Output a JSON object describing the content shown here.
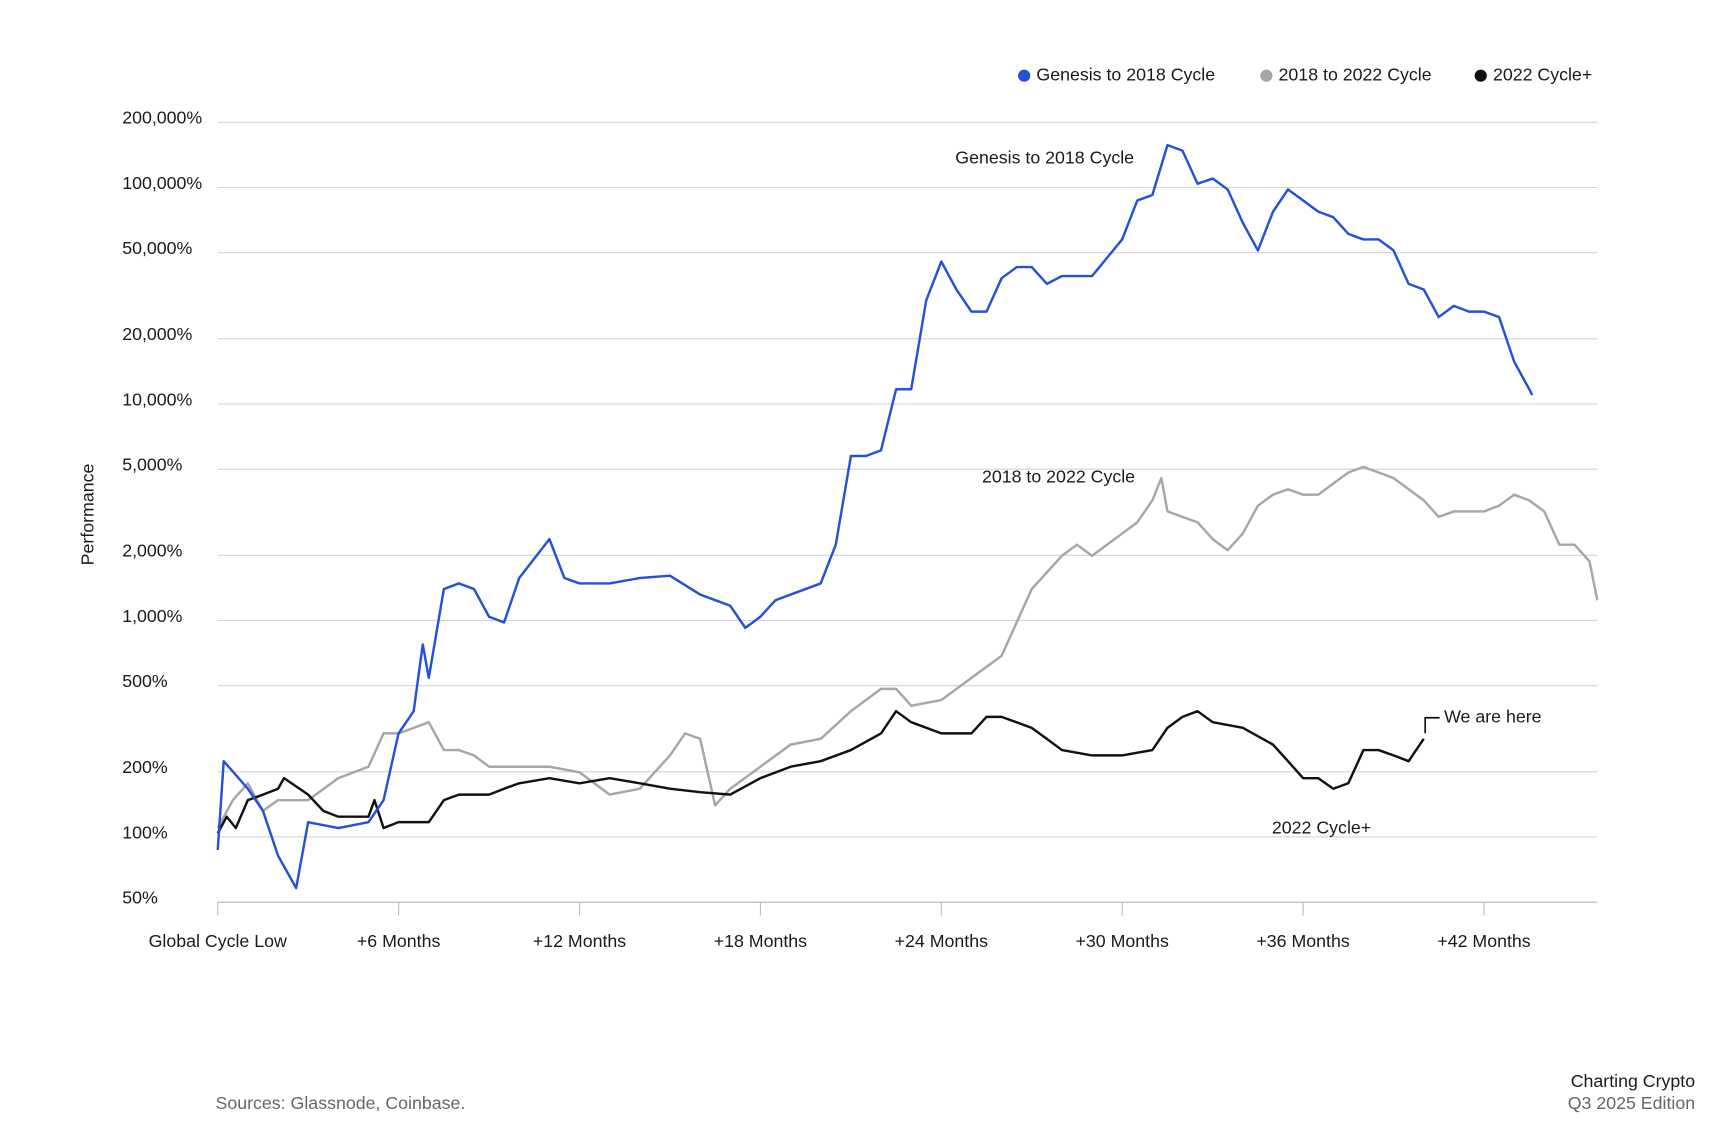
{
  "chart_data": {
    "type": "line",
    "y_label": "Performance",
    "log_y": true,
    "grid": true,
    "legend": "top-right",
    "xlim": [
      0,
      45.76
    ],
    "xticks": [
      {
        "value": 0,
        "label": "Global Cycle Low"
      },
      {
        "value": 6,
        "label": "+6 Months"
      },
      {
        "value": 12,
        "label": "+12 Months"
      },
      {
        "value": 18,
        "label": "+18 Months"
      },
      {
        "value": 24,
        "label": "+24 Months"
      },
      {
        "value": 30,
        "label": "+30 Months"
      },
      {
        "value": 36,
        "label": "+36 Months"
      },
      {
        "value": 42,
        "label": "+42 Months"
      }
    ],
    "ylim": [
      50,
      200000
    ],
    "yticks": [
      {
        "value": 50,
        "label": "50%"
      },
      {
        "value": 100,
        "label": "100%"
      },
      {
        "value": 200,
        "label": "200%"
      },
      {
        "value": 500,
        "label": "500%"
      },
      {
        "value": 1000,
        "label": "1,000%"
      },
      {
        "value": 2000,
        "label": "2,000%"
      },
      {
        "value": 5000,
        "label": "5,000%"
      },
      {
        "value": 10000,
        "label": "10,000%"
      },
      {
        "value": 20000,
        "label": "20,000%"
      },
      {
        "value": 50000,
        "label": "50,000%"
      },
      {
        "value": 100000,
        "label": "100,000%"
      },
      {
        "value": 200000,
        "label": "200,000%"
      }
    ],
    "series": [
      {
        "name": "Genesis to 2018 Cycle",
        "color": "#2451d6",
        "x": [
          0,
          0.2,
          1,
          1.5,
          2,
          2.6,
          3,
          4,
          5,
          5.5,
          6,
          6.5,
          6.8,
          7,
          7.5,
          8,
          8.5,
          9,
          9.5,
          10,
          11,
          11.5,
          12,
          13,
          14,
          15,
          16,
          17,
          17.5,
          18,
          18.5,
          19,
          20,
          20.5,
          21,
          21.5,
          22,
          22.5,
          23,
          23.5,
          24,
          24.5,
          25,
          25.5,
          26,
          26.5,
          27,
          27.5,
          28,
          29,
          30,
          30.5,
          31,
          31.5,
          32,
          32.5,
          33,
          33.5,
          34,
          34.5,
          35,
          35.5,
          36,
          36.5,
          37,
          37.5,
          38,
          38.5,
          39,
          39.5,
          40,
          40.5,
          41,
          41.5,
          42,
          42.5,
          43,
          43.5,
          43.6
        ],
        "values": [
          87,
          224,
          167,
          132,
          82,
          58,
          117,
          110,
          117,
          148,
          301,
          381,
          775,
          543,
          1397,
          1482,
          1397,
          1040,
          980,
          1572,
          2375,
          1572,
          1482,
          1482,
          1572,
          1610,
          1317,
          1169,
          924,
          1040,
          1241,
          1317,
          1482,
          2240,
          5750,
          5750,
          6110,
          11700,
          11700,
          30100,
          45500,
          33800,
          26700,
          26700,
          38100,
          42900,
          42900,
          35900,
          39000,
          39000,
          57600,
          87100,
          92400,
          157000,
          148000,
          104000,
          110000,
          98000,
          68700,
          51200,
          77400,
          98000,
          87100,
          77400,
          72900,
          61100,
          57600,
          57600,
          51200,
          35900,
          33800,
          25200,
          28400,
          26700,
          26700,
          25200,
          15700,
          11700,
          11000
        ]
      },
      {
        "name": "2018 to 2022 Cycle",
        "color": "#a6a6a6",
        "x": [
          0,
          0.5,
          1,
          1.5,
          2,
          3,
          4,
          5,
          5.5,
          6,
          6.5,
          7,
          7.5,
          8,
          8.5,
          9,
          10,
          11,
          12,
          13,
          14,
          15,
          15.5,
          16,
          16.5,
          17,
          18,
          19,
          20,
          21,
          22,
          22.5,
          23,
          24,
          25,
          26,
          27,
          28,
          28.5,
          29,
          30,
          30.5,
          31,
          31.3,
          31.5,
          32,
          32.5,
          33,
          33.5,
          34,
          34.5,
          35,
          35.5,
          36,
          36.5,
          37,
          37.5,
          38,
          38.5,
          39,
          39.5,
          40,
          40.5,
          41,
          41.5,
          42,
          42.5,
          43,
          43.5,
          44,
          44.5,
          45,
          45.5,
          45.76
        ],
        "values": [
          110,
          148,
          177,
          132,
          148,
          148,
          187,
          211,
          301,
          301,
          319,
          339,
          252,
          252,
          238,
          211,
          211,
          211,
          199,
          157,
          167,
          238,
          301,
          284,
          140,
          167,
          211,
          267,
          284,
          381,
          483,
          483,
          404,
          429,
          543,
          687,
          1397,
          1990,
          2240,
          1990,
          2520,
          2840,
          3590,
          4550,
          3190,
          3010,
          2840,
          2375,
          2110,
          2520,
          3390,
          3810,
          4040,
          3810,
          3810,
          4290,
          4830,
          5120,
          4830,
          4550,
          4040,
          3590,
          3010,
          3190,
          3190,
          3190,
          3390,
          3810,
          3590,
          3190,
          2240,
          2240,
          1875,
          1241
        ]
      },
      {
        "name": "2022 Cycle+",
        "color": "#111111",
        "x": [
          0,
          0.3,
          0.6,
          1,
          1.5,
          2,
          2.2,
          3,
          3.5,
          4,
          5,
          5.2,
          5.5,
          6,
          7,
          7.5,
          8,
          9,
          9.5,
          10,
          11,
          12,
          13,
          14,
          15,
          16,
          17,
          18,
          19,
          20,
          21,
          22,
          22.5,
          23,
          24,
          25,
          25.5,
          26,
          27,
          27.5,
          28,
          29,
          30,
          31,
          31.5,
          32,
          32.5,
          33,
          34,
          35,
          35.5,
          36,
          36.5,
          37,
          37.5,
          38,
          38.5,
          39,
          39.5,
          40
        ],
        "values": [
          104,
          124,
          110,
          148,
          157,
          167,
          187,
          157,
          132,
          124,
          124,
          148,
          110,
          117,
          117,
          148,
          157,
          157,
          167,
          177,
          187,
          177,
          187,
          177,
          167,
          161,
          157,
          187,
          211,
          224,
          252,
          301,
          381,
          339,
          301,
          301,
          359,
          359,
          319,
          284,
          252,
          238,
          238,
          252,
          319,
          359,
          381,
          339,
          319,
          267,
          224,
          187,
          187,
          167,
          177,
          252,
          252,
          238,
          224,
          284
        ]
      }
    ],
    "annotations": [
      "Genesis to 2018 Cycle",
      "2018 to 2022 Cycle",
      "We are here",
      "2022 Cycle+"
    ],
    "source": "Sources: Glassnode, Coinbase.",
    "brand": "Charting Crypto",
    "edition": "Q3 2025 Edition"
  }
}
